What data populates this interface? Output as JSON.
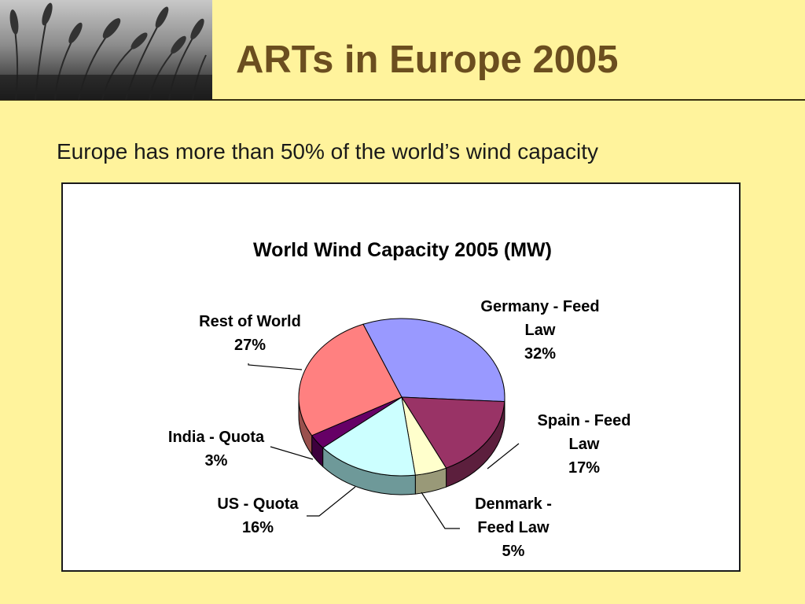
{
  "slide": {
    "title": "ARTs in Europe 2005",
    "subtitle": "Europe has more than 50% of the world’s wind capacity"
  },
  "chart_data": {
    "type": "pie",
    "title": "World Wind Capacity 2005 (MW)",
    "slices": [
      {
        "label_lines": [
          "Germany - Feed",
          "Law"
        ],
        "percent_label": "32%",
        "value": 32,
        "color": "#9999ff",
        "side_color": "#5a5aa6"
      },
      {
        "label_lines": [
          "Spain - Feed",
          "Law"
        ],
        "percent_label": "17%",
        "value": 17,
        "color": "#993366",
        "side_color": "#5c1f3d"
      },
      {
        "label_lines": [
          "Denmark -",
          "Feed Law"
        ],
        "percent_label": "5%",
        "value": 5,
        "color": "#ffffcc",
        "side_color": "#999978"
      },
      {
        "label_lines": [
          "US - Quota"
        ],
        "percent_label": "16%",
        "value": 16,
        "color": "#ccffff",
        "side_color": "#6e9999"
      },
      {
        "label_lines": [
          "India - Quota"
        ],
        "percent_label": "3%",
        "value": 3,
        "color": "#660066",
        "side_color": "#3d003d"
      },
      {
        "label_lines": [
          "Rest of World"
        ],
        "percent_label": "27%",
        "value": 27,
        "color": "#ff8080",
        "side_color": "#99504d"
      }
    ],
    "legend": "none",
    "view": "3d-tilted"
  }
}
